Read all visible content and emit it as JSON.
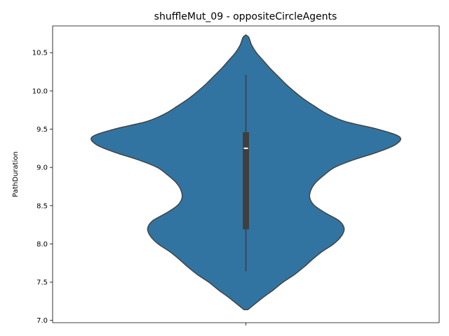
{
  "chart_data": {
    "type": "violin",
    "title": "shuffleMut_09 - oppositeCircleAgents",
    "xlabel": "",
    "ylabel": "PathDuration",
    "ylim": [
      6.97,
      10.85
    ],
    "yticks": [
      "7.0",
      "7.5",
      "8.0",
      "8.5",
      "9.0",
      "9.5",
      "10.0",
      "10.5"
    ],
    "grid": false,
    "colors": {
      "violin_fill": "#3274a1",
      "violin_edge": "#3f3f3f",
      "box": "#3f3f3f",
      "median": "#ffffff"
    },
    "summary": {
      "min": 7.64,
      "q1": 8.19,
      "median": 9.25,
      "q3": 9.46,
      "max": 10.21
    },
    "density_profile": {
      "y": [
        7.14,
        7.2,
        7.3,
        7.4,
        7.5,
        7.6,
        7.7,
        7.8,
        7.9,
        8.0,
        8.1,
        8.2,
        8.3,
        8.4,
        8.5,
        8.6,
        8.7,
        8.8,
        8.9,
        9.0,
        9.1,
        9.2,
        9.3,
        9.4,
        9.5,
        9.6,
        9.7,
        9.8,
        9.9,
        10.0,
        10.1,
        10.2,
        10.3,
        10.4,
        10.5,
        10.6,
        10.7,
        10.73
      ],
      "relative_width": [
        0.02,
        0.08,
        0.18,
        0.29,
        0.39,
        0.51,
        0.61,
        0.7,
        0.8,
        0.92,
        1.0,
        1.03,
        0.98,
        0.84,
        0.72,
        0.67,
        0.68,
        0.73,
        0.82,
        0.93,
        1.13,
        1.38,
        1.57,
        1.61,
        1.38,
        1.04,
        0.85,
        0.72,
        0.6,
        0.5,
        0.41,
        0.33,
        0.25,
        0.18,
        0.11,
        0.06,
        0.03,
        0.0
      ]
    }
  }
}
